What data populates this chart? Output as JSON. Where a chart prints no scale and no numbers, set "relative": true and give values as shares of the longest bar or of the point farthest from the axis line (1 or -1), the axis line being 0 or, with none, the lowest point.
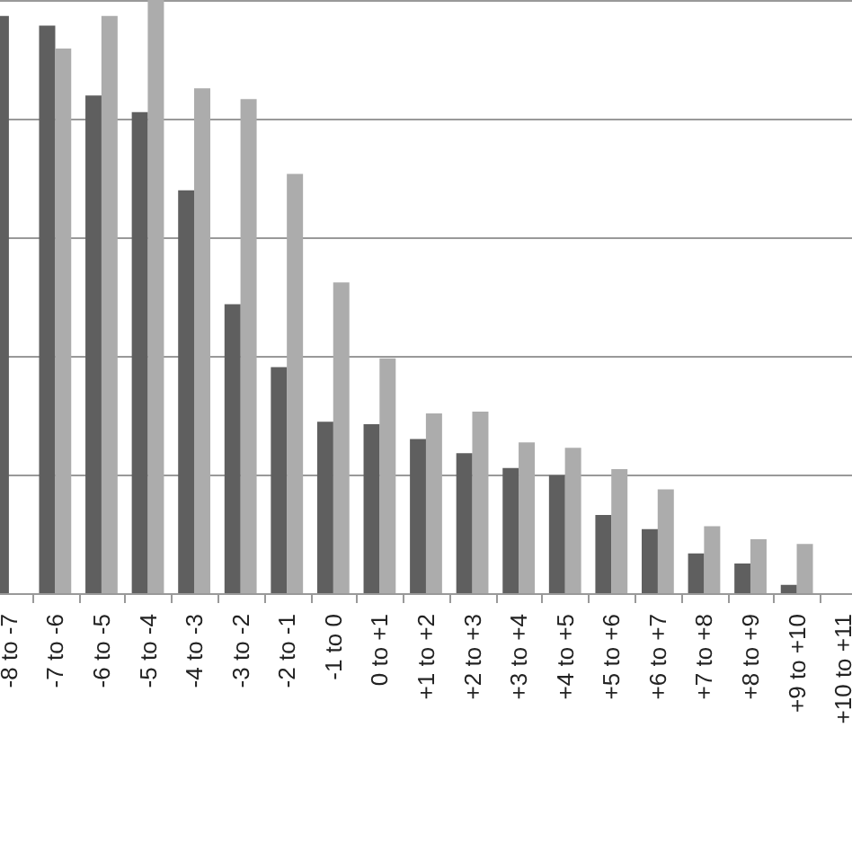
{
  "chart_data": {
    "type": "bar",
    "relative": true,
    "grid": "y",
    "legend": false,
    "categories": [
      "-8 to -7",
      "-7 to -6",
      "-6 to -5",
      "-5 to -4",
      "-4 to -3",
      "-3 to -2",
      "-2 to -1",
      "-1 to 0",
      "0 to +1",
      "+1 to +2",
      "+2 to +3",
      "+3 to +4",
      "+4 to +5",
      "+5 to +6",
      "+6 to +7",
      "+7 to +8",
      "+8 to +9",
      "+9 to +10",
      "+10 to +11"
    ],
    "series": [
      {
        "color": "#5f5f5f",
        "values": [
          0.973,
          0.957,
          0.839,
          0.811,
          0.679,
          0.487,
          0.381,
          0.289,
          0.285,
          0.26,
          0.236,
          0.211,
          0.199,
          0.132,
          0.108,
          0.067,
          0.05,
          0.014,
          null
        ]
      },
      {
        "color": "#acacac",
        "values": [
          null,
          0.918,
          0.973,
          1,
          0.851,
          0.833,
          0.707,
          0.524,
          0.396,
          0.303,
          0.306,
          0.254,
          0.245,
          0.209,
          0.175,
          0.113,
          0.091,
          0.083,
          null
        ]
      }
    ]
  }
}
